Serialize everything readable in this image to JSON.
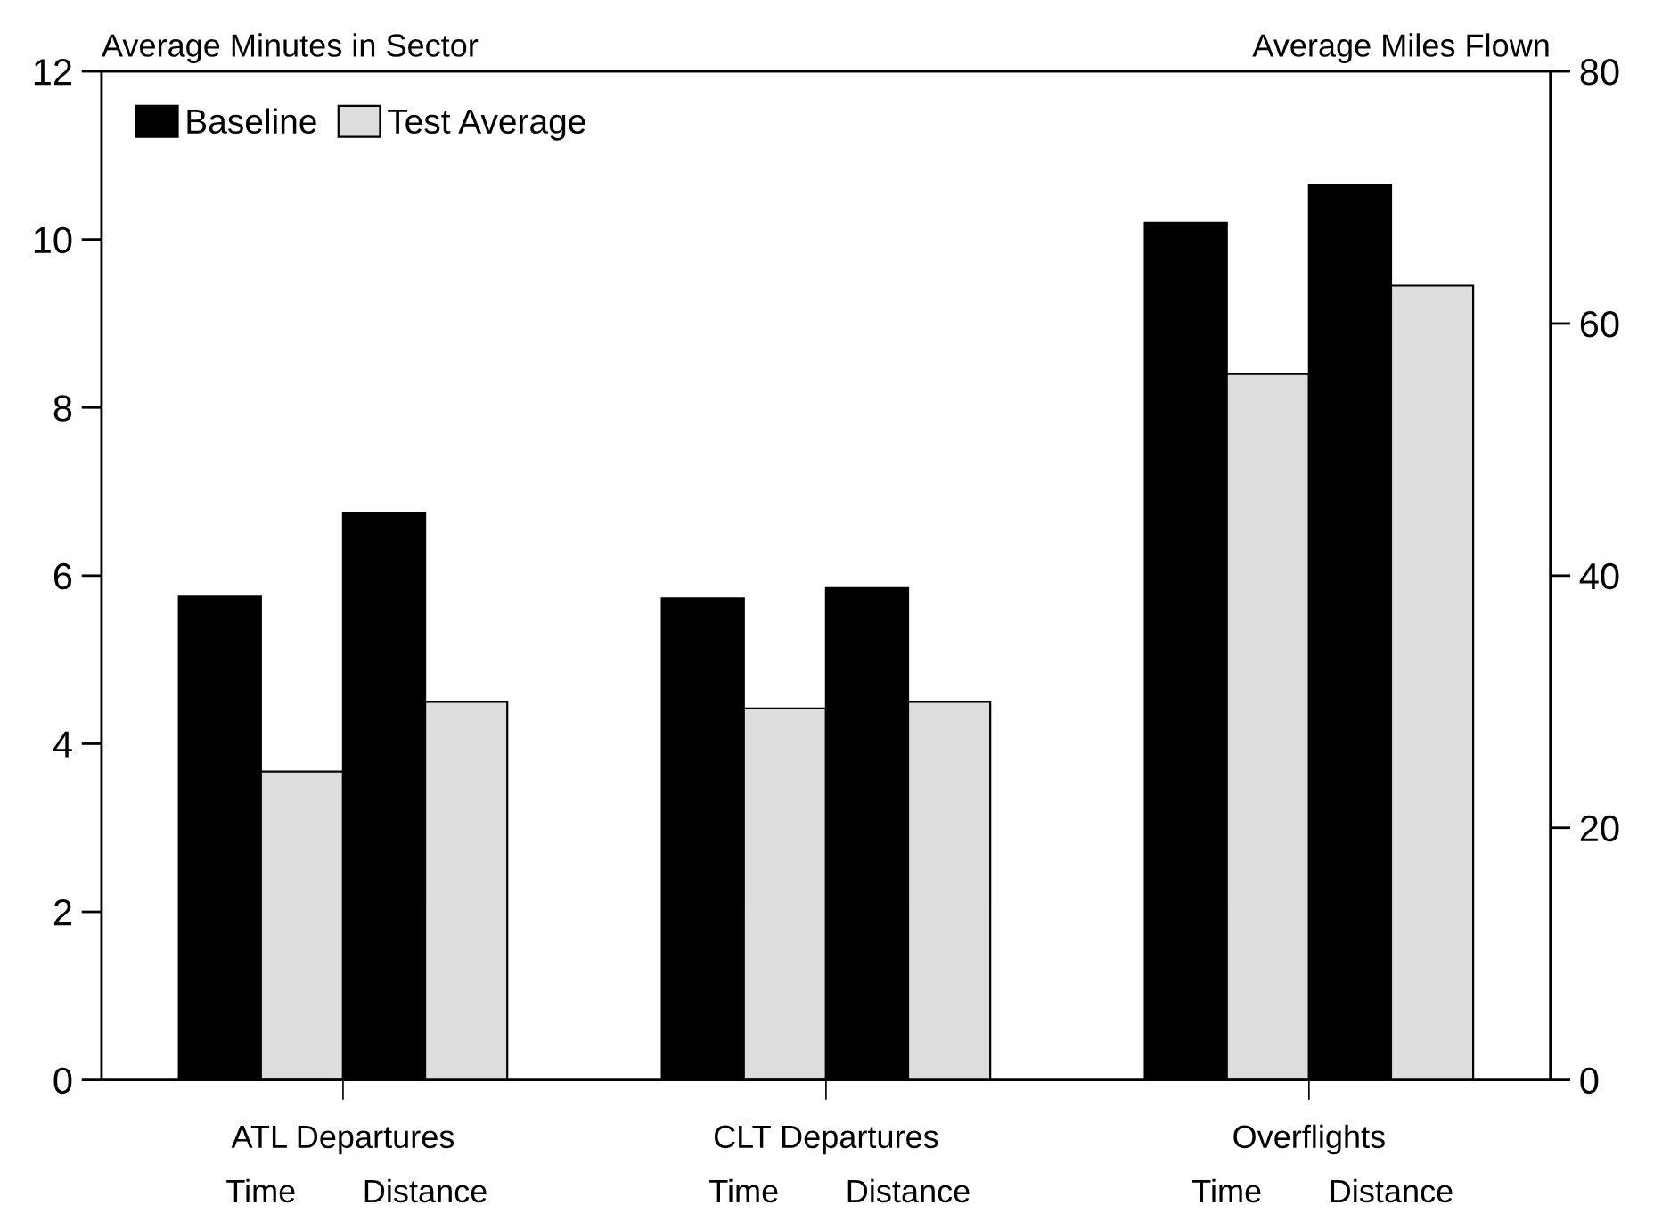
{
  "chart_data": {
    "type": "bar",
    "ylabel": "Average Minutes in Sector",
    "y2label": "Average Miles Flown",
    "categories": [
      "Time",
      "Distance",
      "Time",
      "Distance",
      "Time",
      "Distance"
    ],
    "annotations": [
      "ATL Departures",
      "CLT Departures",
      "Overflights"
    ],
    "series": [
      {
        "name": "Baseline",
        "color": "#000000",
        "values": [
          5.75,
          null,
          5.73,
          null,
          10.2,
          null
        ]
      },
      {
        "name": "Test Average",
        "color": "#dddddd",
        "values": [
          3.67,
          null,
          4.42,
          null,
          8.4,
          null
        ]
      },
      {
        "color": "#000000",
        "axis": "y2",
        "values": [
          null,
          45,
          null,
          39,
          null,
          71
        ]
      },
      {
        "color": "#dddddd",
        "axis": "y2",
        "values": [
          null,
          30,
          null,
          30,
          null,
          63
        ]
      }
    ],
    "ylim": [
      0,
      12
    ],
    "yticks": [
      0,
      2,
      4,
      6,
      8,
      10,
      12
    ],
    "y2lim": [
      0,
      80
    ],
    "y2ticks": [
      0,
      20,
      40,
      60,
      80
    ],
    "legend": "top left",
    "grid": false
  }
}
